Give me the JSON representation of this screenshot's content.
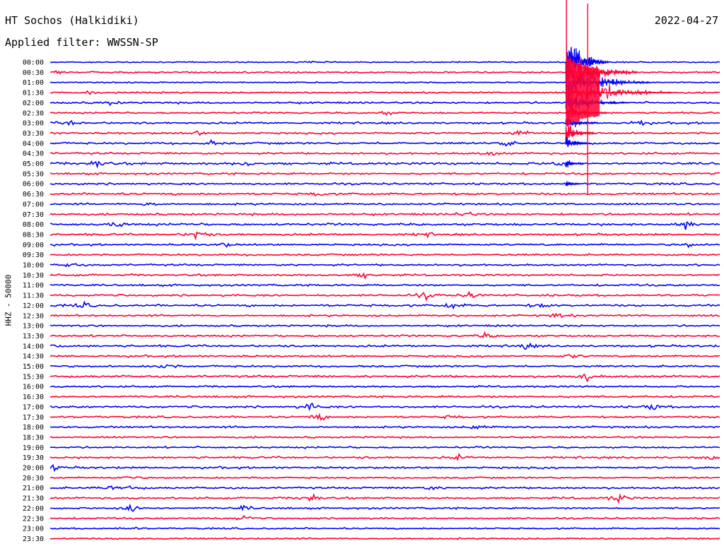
{
  "header": {
    "station": "HT Sochos (Halkidiki)",
    "date": "2022-04-27",
    "filter": "Applied filter: WWSSN-SP"
  },
  "chart_data": {
    "type": "line",
    "title": "HT Sochos (Halkidiki)",
    "ylabel": "HHZ - 50000",
    "colors": [
      "#0000ff",
      "#ff0033"
    ],
    "rows": [
      {
        "label": "00:00",
        "color": "blue",
        "noise": 0.4,
        "events": [
          {
            "x": 0.39,
            "amp": 1.2
          }
        ]
      },
      {
        "label": "00:30",
        "color": "red",
        "noise": 0.8,
        "events": [
          {
            "x": 0.005,
            "amp": 1.0
          }
        ]
      },
      {
        "label": "01:00",
        "color": "blue",
        "noise": 0.5,
        "events": []
      },
      {
        "label": "01:30",
        "color": "red",
        "noise": 0.7,
        "events": [
          {
            "x": 0.06,
            "amp": 0.8
          }
        ]
      },
      {
        "label": "02:00",
        "color": "blue",
        "noise": 1.0,
        "events": [
          {
            "x": 0.09,
            "amp": 0.9
          }
        ]
      },
      {
        "label": "02:30",
        "color": "red",
        "noise": 0.8,
        "events": [
          {
            "x": 0.5,
            "amp": 1.0
          }
        ]
      },
      {
        "label": "03:00",
        "color": "blue",
        "noise": 1.0,
        "events": [
          {
            "x": 0.03,
            "amp": 1.3
          },
          {
            "x": 0.88,
            "amp": 1.5
          }
        ]
      },
      {
        "label": "03:30",
        "color": "red",
        "noise": 1.0,
        "events": [
          {
            "x": 0.22,
            "amp": 1.0
          },
          {
            "x": 0.7,
            "amp": 1.6
          }
        ]
      },
      {
        "label": "04:00",
        "color": "blue",
        "noise": 1.1,
        "events": [
          {
            "x": 0.24,
            "amp": 1.1
          },
          {
            "x": 0.68,
            "amp": 1.4
          }
        ]
      },
      {
        "label": "04:30",
        "color": "red",
        "noise": 1.0,
        "events": [
          {
            "x": 0.66,
            "amp": 1.0
          }
        ]
      },
      {
        "label": "05:00",
        "color": "blue",
        "noise": 1.3,
        "events": [
          {
            "x": 0.07,
            "amp": 2.5
          },
          {
            "x": 0.29,
            "amp": 1.4
          },
          {
            "x": 0.76,
            "amp": 2.0
          }
        ]
      },
      {
        "label": "05:30",
        "color": "red",
        "noise": 1.0,
        "events": []
      },
      {
        "label": "06:00",
        "color": "blue",
        "noise": 1.0,
        "events": []
      },
      {
        "label": "06:30",
        "color": "red",
        "noise": 1.2,
        "events": [
          {
            "x": 0.4,
            "amp": 1.0
          }
        ]
      },
      {
        "label": "07:00",
        "color": "blue",
        "noise": 1.0,
        "events": [
          {
            "x": 0.15,
            "amp": 1.1
          }
        ]
      },
      {
        "label": "07:30",
        "color": "red",
        "noise": 1.1,
        "events": [
          {
            "x": 0.62,
            "amp": 1.6
          }
        ]
      },
      {
        "label": "08:00",
        "color": "blue",
        "noise": 1.3,
        "events": [
          {
            "x": 0.1,
            "amp": 1.4
          },
          {
            "x": 0.95,
            "amp": 2.2
          }
        ]
      },
      {
        "label": "08:30",
        "color": "red",
        "noise": 1.1,
        "events": [
          {
            "x": 0.22,
            "amp": 3.0
          },
          {
            "x": 0.56,
            "amp": 1.2
          }
        ]
      },
      {
        "label": "09:00",
        "color": "blue",
        "noise": 1.0,
        "events": [
          {
            "x": 0.26,
            "amp": 1.2
          },
          {
            "x": 0.95,
            "amp": 1.4
          }
        ]
      },
      {
        "label": "09:30",
        "color": "red",
        "noise": 0.9,
        "events": []
      },
      {
        "label": "10:00",
        "color": "blue",
        "noise": 1.0,
        "events": [
          {
            "x": 0.03,
            "amp": 1.1
          }
        ]
      },
      {
        "label": "10:30",
        "color": "red",
        "noise": 1.0,
        "events": [
          {
            "x": 0.47,
            "amp": 1.4
          }
        ]
      },
      {
        "label": "11:00",
        "color": "blue",
        "noise": 1.0,
        "events": []
      },
      {
        "label": "11:30",
        "color": "red",
        "noise": 1.0,
        "events": [
          {
            "x": 0.56,
            "amp": 1.8
          },
          {
            "x": 0.63,
            "amp": 1.6
          }
        ]
      },
      {
        "label": "12:00",
        "color": "blue",
        "noise": 1.2,
        "events": [
          {
            "x": 0.05,
            "amp": 1.3
          },
          {
            "x": 0.6,
            "amp": 1.5
          },
          {
            "x": 0.73,
            "amp": 1.3
          }
        ]
      },
      {
        "label": "12:30",
        "color": "red",
        "noise": 1.0,
        "events": [
          {
            "x": 0.76,
            "amp": 1.4
          }
        ]
      },
      {
        "label": "13:00",
        "color": "blue",
        "noise": 0.9,
        "events": []
      },
      {
        "label": "13:30",
        "color": "red",
        "noise": 1.0,
        "events": [
          {
            "x": 0.65,
            "amp": 1.2
          }
        ]
      },
      {
        "label": "14:00",
        "color": "blue",
        "noise": 1.1,
        "events": [
          {
            "x": 0.003,
            "amp": 1.5
          },
          {
            "x": 0.71,
            "amp": 1.6
          }
        ]
      },
      {
        "label": "14:30",
        "color": "red",
        "noise": 1.0,
        "events": [
          {
            "x": 0.78,
            "amp": 1.2
          }
        ]
      },
      {
        "label": "15:00",
        "color": "blue",
        "noise": 1.0,
        "events": [
          {
            "x": 0.17,
            "amp": 2.2
          }
        ]
      },
      {
        "label": "15:30",
        "color": "red",
        "noise": 1.2,
        "events": [
          {
            "x": 0.8,
            "amp": 2.0
          }
        ]
      },
      {
        "label": "16:00",
        "color": "blue",
        "noise": 0.9,
        "events": []
      },
      {
        "label": "16:30",
        "color": "red",
        "noise": 1.0,
        "events": []
      },
      {
        "label": "17:00",
        "color": "blue",
        "noise": 1.1,
        "events": [
          {
            "x": 0.39,
            "amp": 2.0
          },
          {
            "x": 0.9,
            "amp": 1.8
          }
        ]
      },
      {
        "label": "17:30",
        "color": "red",
        "noise": 1.0,
        "events": [
          {
            "x": 0.4,
            "amp": 2.2
          },
          {
            "x": 0.6,
            "amp": 1.1
          }
        ]
      },
      {
        "label": "18:00",
        "color": "blue",
        "noise": 1.0,
        "events": [
          {
            "x": 0.64,
            "amp": 1.4
          }
        ]
      },
      {
        "label": "18:30",
        "color": "red",
        "noise": 0.8,
        "events": []
      },
      {
        "label": "19:00",
        "color": "blue",
        "noise": 0.9,
        "events": []
      },
      {
        "label": "19:30",
        "color": "red",
        "noise": 1.0,
        "events": [
          {
            "x": 0.61,
            "amp": 1.1
          },
          {
            "x": 0.99,
            "amp": 1.2
          }
        ]
      },
      {
        "label": "20:00",
        "color": "blue",
        "noise": 1.1,
        "events": [
          {
            "x": 0.003,
            "amp": 1.2
          }
        ]
      },
      {
        "label": "20:30",
        "color": "red",
        "noise": 0.8,
        "events": [
          {
            "x": 0.12,
            "amp": 1.0
          }
        ]
      },
      {
        "label": "21:00",
        "color": "blue",
        "noise": 1.0,
        "events": [
          {
            "x": 0.09,
            "amp": 1.3
          },
          {
            "x": 0.12,
            "amp": 1.0
          },
          {
            "x": 0.57,
            "amp": 1.1
          }
        ]
      },
      {
        "label": "21:30",
        "color": "red",
        "noise": 1.0,
        "events": [
          {
            "x": 0.39,
            "amp": 3.0
          },
          {
            "x": 0.85,
            "amp": 2.4
          }
        ]
      },
      {
        "label": "22:00",
        "color": "blue",
        "noise": 0.9,
        "events": [
          {
            "x": 0.12,
            "amp": 3.0
          },
          {
            "x": 0.29,
            "amp": 1.0
          }
        ]
      },
      {
        "label": "22:30",
        "color": "red",
        "noise": 0.8,
        "events": [
          {
            "x": 0.29,
            "amp": 1.6
          }
        ]
      },
      {
        "label": "23:00",
        "color": "blue",
        "noise": 0.7,
        "events": [
          {
            "x": 0.12,
            "amp": 1.0
          }
        ]
      },
      {
        "label": "23:30",
        "color": "red",
        "noise": 0.7,
        "events": []
      }
    ],
    "main_quake": {
      "start_row": 0,
      "x": 0.77,
      "peak_row": 3
    }
  }
}
